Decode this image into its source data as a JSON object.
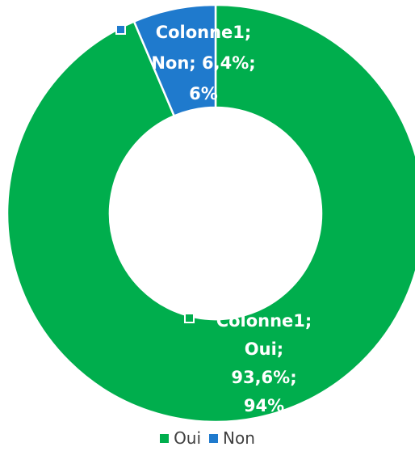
{
  "chart_data": {
    "type": "pie",
    "variant": "donut",
    "series_name": "Colonne1",
    "title": "",
    "categories": [
      "Oui",
      "Non"
    ],
    "values": [
      93.6,
      6.4
    ],
    "percent_labels": [
      "93,6%",
      "6,4%"
    ],
    "rounded_labels": [
      "94%",
      "6%"
    ],
    "colors": [
      "#00AE4D",
      "#1F7ACD"
    ],
    "legend_position": "bottom",
    "data_labels": [
      [
        "Colonne1;",
        "Oui;",
        "93,6%;",
        "94%"
      ],
      [
        "Colonne1;",
        "Non; 6,4%;",
        "6%"
      ]
    ]
  },
  "legend": {
    "items": [
      {
        "label": "Oui",
        "color": "#00AE4D"
      },
      {
        "label": "Non",
        "color": "#1F7ACD"
      }
    ]
  }
}
